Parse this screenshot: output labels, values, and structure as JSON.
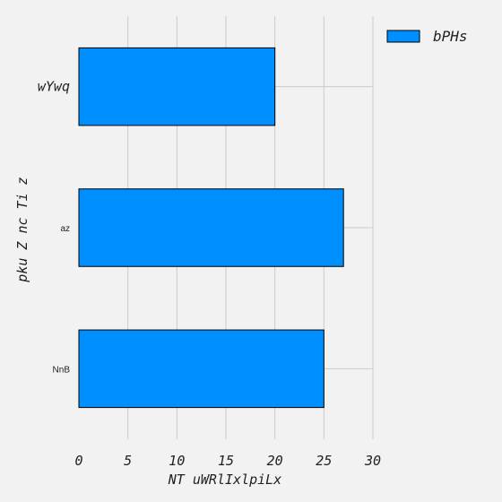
{
  "chart_data": {
    "type": "bar",
    "orientation": "horizontal",
    "categories": [
      "wYwq",
      "az",
      "NnB"
    ],
    "series": [
      {
        "name": "bPHs",
        "values": [
          20,
          27,
          25
        ],
        "color": "#008fff"
      }
    ],
    "xlabel": "NT uWRlIxlpiLx",
    "ylabel": "pku Z nc  Ti z",
    "xlim": [
      0,
      30
    ],
    "xticks": [
      "0",
      "5",
      "10",
      "15",
      "20",
      "25",
      "30"
    ],
    "grid": true,
    "legend_position": "top-right"
  }
}
